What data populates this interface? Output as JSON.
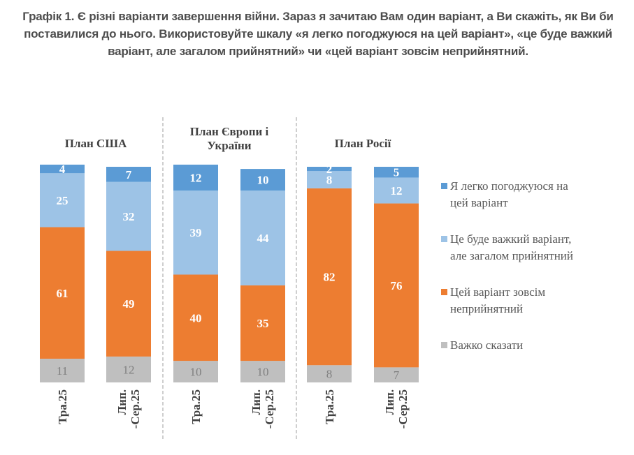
{
  "title": "Графік 1. Є різні варіанти завершення війни. Зараз я зачитаю Вам один варіант, а Ви скажіть, як Ви би поставилися до нього. Використовуйте шкалу «я легко погоджуюся на цей варіант», «це буде важкий варіант, але загалом прийнятний» чи «цей варіант зовсім неприйнятний.",
  "chart_data": {
    "type": "bar",
    "stacked": true,
    "title": "Графік 1. Є різні варіанти завершення війни. Зараз я зачитаю Вам один варіант, а Ви скажіть, як Ви би поставилися до нього. Використовуйте шкалу «я легко погоджуюся на цей варіант», «це буде важкий варіант, але загалом прийнятний» чи «цей варіант зовсім неприйнятний.",
    "xlabel": "",
    "ylabel": "",
    "ylim": [
      0,
      100
    ],
    "grid": false,
    "legend_position": "right",
    "groups": [
      {
        "name": [
          "План США"
        ],
        "categories": [
          "Тра.25",
          "Лип. -Сер.25"
        ]
      },
      {
        "name": [
          "План Європи і",
          "України"
        ],
        "categories": [
          "Тра.25",
          "Лип. -Сер.25"
        ]
      },
      {
        "name": [
          "План Росії"
        ],
        "categories": [
          "Тра.25",
          "Лип. -Сер.25"
        ]
      }
    ],
    "categories": [
      "План США Тра.25",
      "План США Лип.-Сер.25",
      "План Європи і України Тра.25",
      "План Європи і України Лип.-Сер.25",
      "План Росії Тра.25",
      "План Росії Лип.-Сер.25"
    ],
    "category_labels": [
      [
        "Тра.25"
      ],
      [
        "Лип.",
        "-Сер.25"
      ],
      [
        "Тра.25"
      ],
      [
        "Лип.",
        "-Сер.25"
      ],
      [
        "Тра.25"
      ],
      [
        "Лип.",
        "-Сер.25"
      ]
    ],
    "series": [
      {
        "name": "Важко сказати",
        "legend": [
          "Важко сказати"
        ],
        "color": "#bfbfbf",
        "values": [
          11,
          12,
          10,
          10,
          8,
          7
        ]
      },
      {
        "name": "Цей варіант зовсім неприйнятний",
        "legend": [
          "Цей варіант зовсім",
          "неприйнятний"
        ],
        "color": "#ed7d31",
        "values": [
          61,
          49,
          40,
          35,
          82,
          76
        ]
      },
      {
        "name": "Це буде важкий варіант, але загалом прийнятний",
        "legend": [
          "Це буде важкий варіант,",
          "але загалом прийнятний"
        ],
        "color": "#9dc3e6",
        "values": [
          25,
          32,
          39,
          44,
          8,
          12
        ]
      },
      {
        "name": "Я легко погоджуюся на цей варіант",
        "legend": [
          "Я легко погоджуюся на",
          "цей варіант"
        ],
        "color": "#5b9bd5",
        "values": [
          4,
          7,
          12,
          10,
          2,
          5
        ]
      }
    ]
  }
}
